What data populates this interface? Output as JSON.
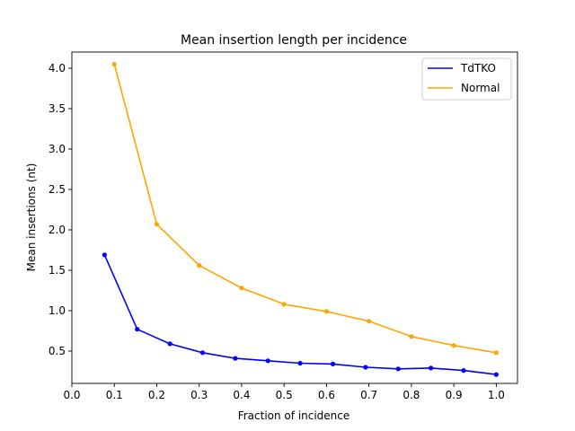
{
  "chart_data": {
    "type": "line",
    "title": "Mean insertion length per incidence",
    "xlabel": "Fraction of incidence",
    "ylabel": "Mean insertions (nt)",
    "xlim": [
      0.0,
      1.05
    ],
    "ylim": [
      0.1,
      4.2
    ],
    "x_ticks": [
      "0.0",
      "0.1",
      "0.2",
      "0.3",
      "0.4",
      "0.5",
      "0.6",
      "0.7",
      "0.8",
      "0.9",
      "1.0"
    ],
    "y_ticks": [
      "0.5",
      "1.0",
      "1.5",
      "2.0",
      "2.5",
      "3.0",
      "3.5",
      "4.0"
    ],
    "grid": false,
    "legend_position": "top-right",
    "series": [
      {
        "name": "TdTKO",
        "color": "#0000ff",
        "x": [
          0.077,
          0.154,
          0.231,
          0.308,
          0.385,
          0.462,
          0.538,
          0.615,
          0.692,
          0.769,
          0.846,
          0.923,
          1.0
        ],
        "y": [
          1.69,
          0.77,
          0.59,
          0.48,
          0.41,
          0.38,
          0.35,
          0.34,
          0.3,
          0.28,
          0.29,
          0.26,
          0.21
        ]
      },
      {
        "name": "Normal",
        "color": "#ffa500",
        "x": [
          0.1,
          0.2,
          0.3,
          0.4,
          0.5,
          0.6,
          0.7,
          0.8,
          0.9,
          1.0
        ],
        "y": [
          4.05,
          2.07,
          1.56,
          1.28,
          1.08,
          0.99,
          0.87,
          0.68,
          0.57,
          0.48
        ]
      }
    ]
  }
}
